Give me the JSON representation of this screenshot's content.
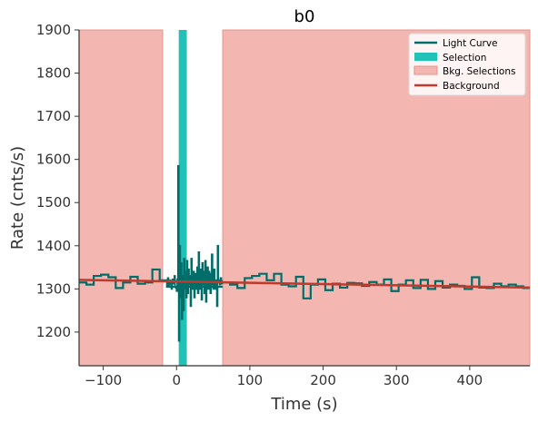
{
  "chart_data": {
    "type": "line",
    "title": "b0",
    "xlabel": "Time (s)",
    "ylabel": "Rate (cnts/s)",
    "xlim": [
      -133,
      482
    ],
    "ylim": [
      1122,
      1900
    ],
    "xticks": [
      -100,
      0,
      100,
      200,
      300,
      400
    ],
    "xtick_labels": [
      "−100",
      "0",
      "100",
      "200",
      "300",
      "400"
    ],
    "yticks": [
      1200,
      1300,
      1400,
      1500,
      1600,
      1700,
      1800,
      1900
    ],
    "ytick_labels": [
      "1200",
      "1300",
      "1400",
      "1500",
      "1600",
      "1700",
      "1800",
      "1900"
    ],
    "grid": false,
    "legend_position": "top-right",
    "legend": [
      {
        "label": "Light Curve",
        "kind": "line"
      },
      {
        "label": "Selection",
        "kind": "patch"
      },
      {
        "label": "Bkg. Selections",
        "kind": "patch"
      },
      {
        "label": "Background",
        "kind": "line"
      }
    ],
    "colors": {
      "light_curve": "#006d68",
      "selection": "#20c1b6",
      "bkg_selection_fill": "#f4b6b0",
      "bkg_selection_edge": "#e8918a",
      "background": "#c0392b"
    },
    "bkg_selections": [
      [
        -133,
        -19
      ],
      [
        63,
        482
      ]
    ],
    "selection": [
      3,
      14
    ],
    "background_line": {
      "x": [
        -133,
        482
      ],
      "y": [
        1321,
        1303
      ]
    },
    "light_curve_coarse": {
      "edges": [
        -133,
        -123,
        -113,
        -103,
        -93,
        -83,
        -73,
        -63,
        -53,
        -43,
        -33,
        -23,
        -13,
        63,
        73,
        83,
        93,
        103,
        113,
        123,
        133,
        143,
        153,
        163,
        173,
        183,
        193,
        203,
        213,
        223,
        233,
        243,
        253,
        263,
        273,
        283,
        293,
        303,
        313,
        323,
        333,
        343,
        353,
        363,
        373,
        383,
        393,
        403,
        413,
        423,
        433,
        443,
        453,
        463,
        473,
        482
      ],
      "values": [
        1315,
        1310,
        1330,
        1333,
        1327,
        1302,
        1315,
        1328,
        1312,
        1315,
        1345,
        1320,
        1305,
        1315,
        1310,
        1302,
        1325,
        1330,
        1335,
        1320,
        1335,
        1310,
        1306,
        1328,
        1278,
        1310,
        1322,
        1297,
        1312,
        1303,
        1314,
        1313,
        1307,
        1316,
        1310,
        1322,
        1295,
        1310,
        1320,
        1302,
        1321,
        1300,
        1318,
        1303,
        1310,
        1307,
        1300,
        1327,
        1303,
        1302,
        1312,
        1306,
        1310,
        1306,
        1302
      ],
      "gap_after_index": 12
    },
    "light_curve_fine": {
      "start": -13,
      "step": 1,
      "values": [
        1315,
        1325,
        1305,
        1320,
        1310,
        1318,
        1300,
        1322,
        1312,
        1316,
        1330,
        1305,
        1302,
        1295,
        1322,
        1585,
        1180,
        1400,
        1280,
        1360,
        1230,
        1330,
        1250,
        1370,
        1300,
        1340,
        1280,
        1365,
        1290,
        1345,
        1310,
        1330,
        1260,
        1370,
        1300,
        1320,
        1340,
        1280,
        1335,
        1310,
        1300,
        1350,
        1290,
        1385,
        1300,
        1330,
        1345,
        1275,
        1360,
        1310,
        1340,
        1290,
        1365,
        1270,
        1320,
        1350,
        1300,
        1340,
        1320,
        1290,
        1335,
        1380,
        1310,
        1300,
        1345,
        1300,
        1315,
        1320,
        1260,
        1400,
        1315,
        1320,
        1310,
        1325,
        1312,
        1318
      ]
    }
  }
}
